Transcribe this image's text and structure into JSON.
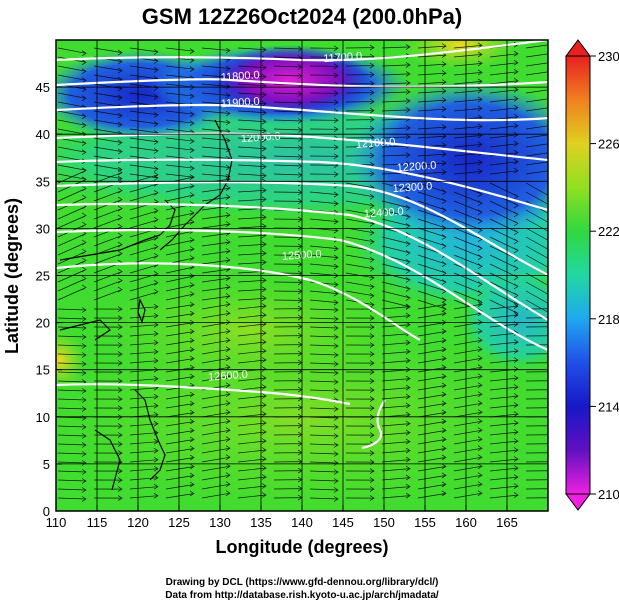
{
  "chart_data": {
    "type": "heatmap",
    "title": "GSM 12Z26Oct2024 (200.0hPa)",
    "xlabel": "Longitude (degrees)",
    "ylabel": "Latitude  (degrees)",
    "xlim": [
      110,
      170
    ],
    "ylim": [
      0,
      50
    ],
    "x_ticks": [
      "110",
      "115",
      "120",
      "125",
      "130",
      "135",
      "140",
      "145",
      "150",
      "155",
      "160",
      "165"
    ],
    "y_ticks": [
      "0",
      "5",
      "10",
      "15",
      "20",
      "25",
      "30",
      "35",
      "40",
      "45"
    ],
    "colorbar": {
      "range": [
        210,
        230
      ],
      "ticks": [
        "210",
        "214",
        "218",
        "222",
        "226",
        "230"
      ]
    },
    "contours": [
      {
        "label": "11700.0",
        "lon": 145,
        "lat": 47.8
      },
      {
        "label": "11800.0",
        "lon": 132.5,
        "lat": 45.8
      },
      {
        "label": "11900.0",
        "lon": 132.5,
        "lat": 43.0
      },
      {
        "label": "12000.0",
        "lon": 135,
        "lat": 39.3
      },
      {
        "label": "12100.0",
        "lon": 149,
        "lat": 38.7
      },
      {
        "label": "12200.0",
        "lon": 154,
        "lat": 36.2
      },
      {
        "label": "12300.0",
        "lon": 153.5,
        "lat": 34.0
      },
      {
        "label": "12400.0",
        "lon": 150,
        "lat": 31.3
      },
      {
        "label": "12500.0",
        "lon": 140,
        "lat": 26.8
      },
      {
        "label": "12600.0",
        "lon": 131,
        "lat": 14.0
      }
    ],
    "grid": true,
    "legend": "colorbar-right"
  },
  "credits": {
    "line1": "Drawing by DCL (https://www.gfd-dennou.org/library/dcl/)",
    "line2": "Data from http://database.rish.kyoto-u.ac.jp/arch/jmadata/"
  }
}
